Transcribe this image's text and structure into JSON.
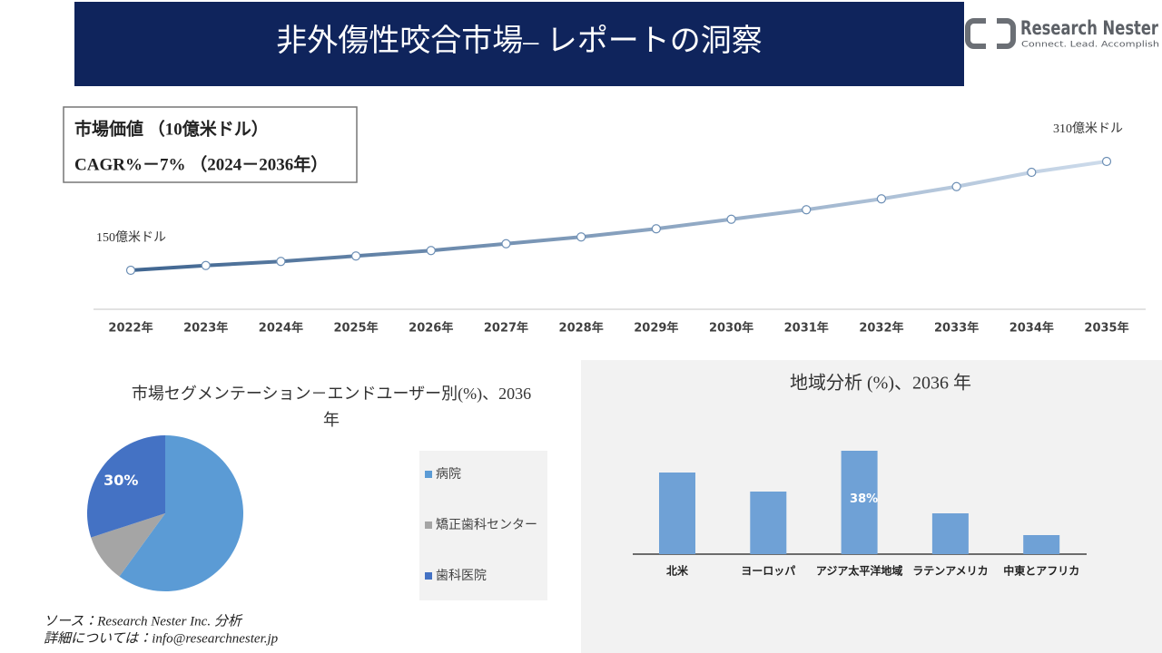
{
  "header": {
    "title": "非外傷性咬合市場– レポートの洞察"
  },
  "logo": {
    "name": "Research Nester",
    "tagline": "Connect. Lead. Accomplish"
  },
  "chart_data": [
    {
      "type": "line",
      "title": "市場価値 （10億米ドル）",
      "subtitle": "CAGR%－7% （2024－2036年）",
      "categories": [
        "2022年",
        "2023年",
        "2024年",
        "2025年",
        "2026年",
        "2027年",
        "2028年",
        "2029年",
        "2030年",
        "2031年",
        "2032年",
        "2033年",
        "2034年",
        "2035年"
      ],
      "values": [
        150,
        157,
        163,
        171,
        179,
        189,
        199,
        211,
        225,
        239,
        255,
        273,
        294,
        310
      ],
      "value_labels": [
        "150億米ドル",
        null,
        null,
        null,
        null,
        null,
        null,
        null,
        null,
        null,
        null,
        null,
        null,
        "310億米ドル"
      ],
      "colors": [
        "#3f6590",
        "#cddbeb"
      ]
    },
    {
      "type": "pie",
      "title": "市場セグメンテーション－エンドユーザー別(%)、2036年",
      "categories": [
        "病院",
        "矯正歯科センター",
        "歯科医院"
      ],
      "values": [
        60,
        10,
        30
      ],
      "value_labels": [
        null,
        null,
        "30%"
      ],
      "colors": [
        "#5b9bd5",
        "#a5a5a5",
        "#4472c4"
      ]
    },
    {
      "type": "bar",
      "title": "地域分析 (%)、2036 年",
      "categories": [
        "北米",
        "ヨーロッパ",
        "アジア太平洋地域",
        "ラテンアメリカ",
        "中東とアフリカ"
      ],
      "values": [
        30,
        23,
        38,
        15,
        7
      ],
      "value_labels": [
        null,
        null,
        "38%",
        null,
        null
      ],
      "color": "#6fa1d6"
    }
  ],
  "footer": {
    "source": "ソース：Research Nester Inc. 分析",
    "contact": "詳細については：info@researchnester.jp"
  }
}
